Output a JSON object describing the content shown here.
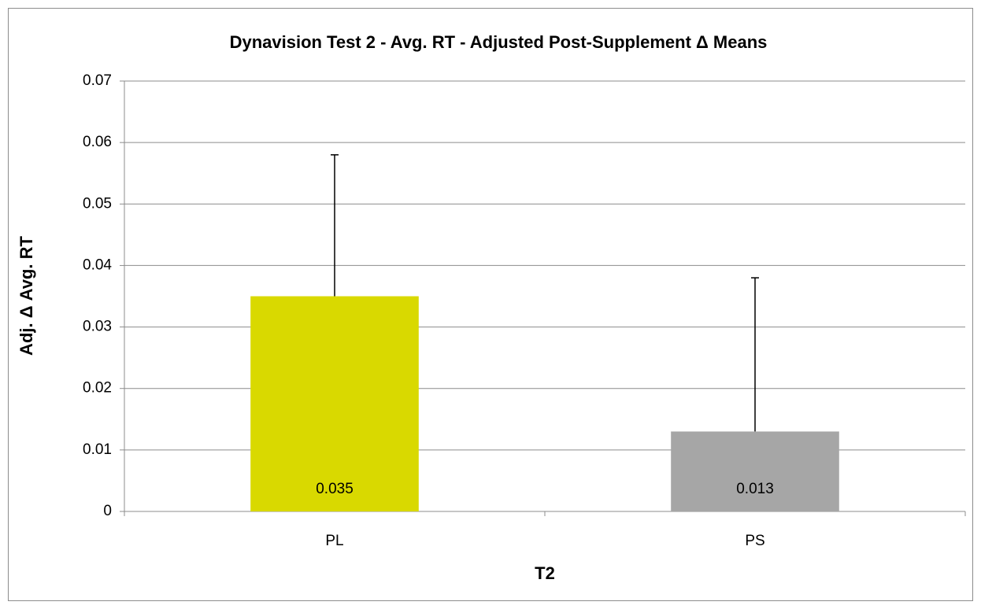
{
  "chart_data": {
    "type": "bar",
    "title": "Dynavision Test 2 - Avg. RT - Adjusted Post-Supplement Δ Means",
    "x_label": "T2",
    "y_label": "Adj. Δ Avg. RT",
    "categories": [
      "PL",
      "PS"
    ],
    "values": [
      0.035,
      0.013
    ],
    "errors": [
      0.023,
      0.025
    ],
    "colors": [
      "#d9d900",
      "#a6a6a6"
    ],
    "ylim": [
      0,
      0.07
    ],
    "yticks": [
      0,
      0.01,
      0.02,
      0.03,
      0.04,
      0.05,
      0.06,
      0.07
    ],
    "grid": true
  }
}
